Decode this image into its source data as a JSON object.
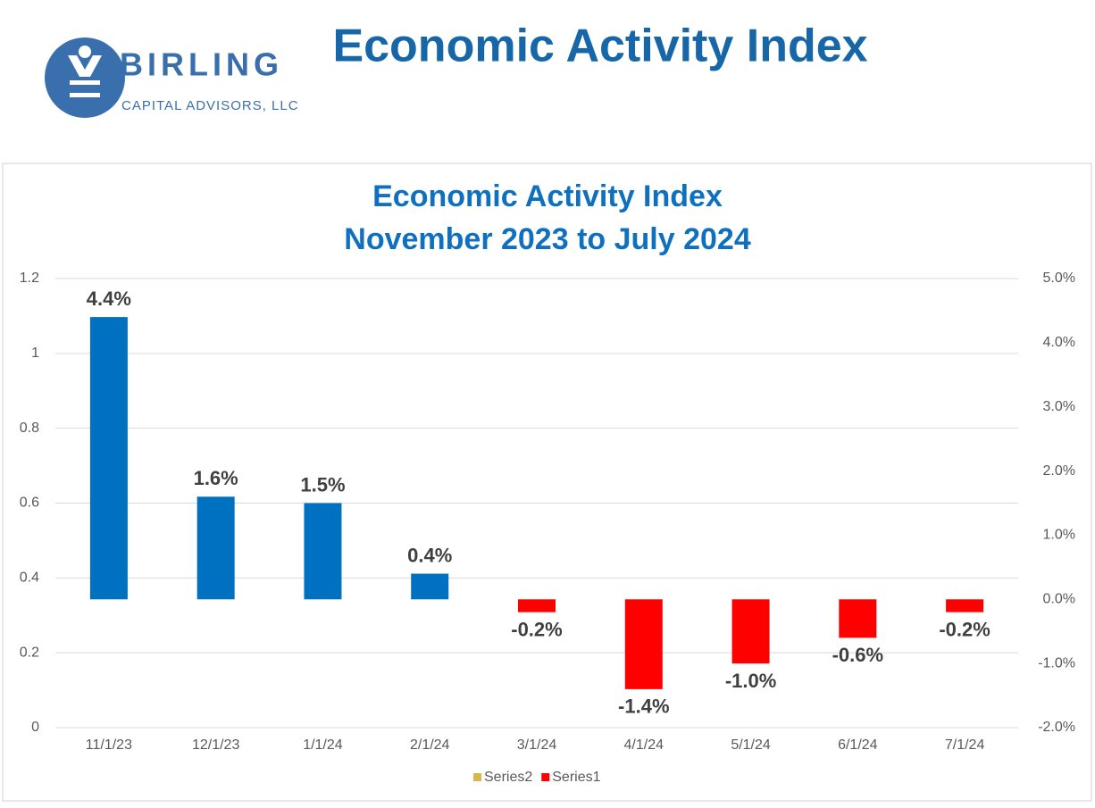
{
  "header": {
    "title": "Economic Activity Index",
    "logo": {
      "name": "BIRLING",
      "tagline": "CAPITAL ADVISORS, LLC"
    }
  },
  "chart_data": {
    "type": "bar",
    "title": "Economic Activity Index",
    "subtitle": "November 2023 to July 2024",
    "categories": [
      "11/1/23",
      "12/1/23",
      "1/1/24",
      "2/1/24",
      "3/1/24",
      "4/1/24",
      "5/1/24",
      "6/1/24",
      "7/1/24"
    ],
    "series": [
      {
        "name": "Series2",
        "color": "#d4b84a",
        "values": [
          null,
          null,
          null,
          null,
          null,
          null,
          null,
          null,
          null
        ],
        "axis": "y2"
      },
      {
        "name": "Series1",
        "color": "#ff0000",
        "positive_color": "#0070c0",
        "axis": "y2",
        "values": [
          4.4,
          1.6,
          1.5,
          0.4,
          -0.2,
          -1.4,
          -1.0,
          -0.6,
          -0.2
        ],
        "value_labels": [
          "4.4%",
          "1.6%",
          "1.5%",
          "0.4%",
          "-0.2%",
          "-1.4%",
          "-1.0%",
          "-0.6%",
          "-0.2%"
        ]
      }
    ],
    "ylim": [
      0,
      1.2
    ],
    "yticks": [
      0,
      0.2,
      0.4,
      0.6,
      0.8,
      1,
      1.2
    ],
    "y2lim": [
      -2,
      5
    ],
    "y2ticks": [
      {
        "value": -2,
        "label": "-2.0%"
      },
      {
        "value": -1,
        "label": "-1.0%"
      },
      {
        "value": 0,
        "label": "0.0%"
      },
      {
        "value": 1,
        "label": "1.0%"
      },
      {
        "value": 2,
        "label": "2.0%"
      },
      {
        "value": 3,
        "label": "3.0%"
      },
      {
        "value": 4,
        "label": "4.0%"
      },
      {
        "value": 5,
        "label": "5.0%"
      }
    ],
    "grid": true,
    "legend": "bottom"
  }
}
